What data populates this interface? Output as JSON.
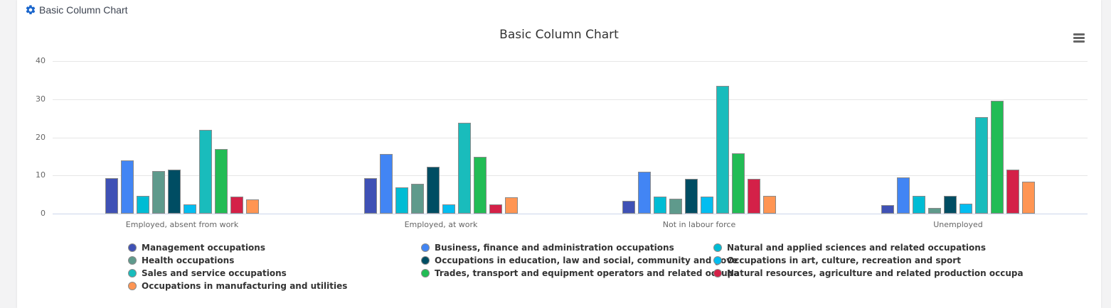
{
  "panel": {
    "header_title": "Basic Column Chart",
    "header_icon": "gear-icon",
    "accent_color": "#1a66cc"
  },
  "menu_icon": "hamburger-menu-icon",
  "chart_data": {
    "type": "bar",
    "title": "Basic Column Chart",
    "xlabel": "",
    "ylabel": "",
    "ylim": [
      0,
      40
    ],
    "yticks": [
      "0",
      "10",
      "20",
      "30",
      "40"
    ],
    "grid": true,
    "legend_position": "bottom",
    "categories": [
      "Employed, absent from work",
      "Employed, at work",
      "Not in labour force",
      "Unemployed"
    ],
    "series": [
      {
        "name": "Management occupations",
        "color": "#3f51b5",
        "values": [
          9.3,
          9.3,
          3.3,
          2.2
        ]
      },
      {
        "name": "Business, finance and administration occupations",
        "color": "#4285f4",
        "values": [
          13.9,
          15.6,
          10.9,
          9.5
        ]
      },
      {
        "name": "Natural and applied sciences and related occupations",
        "color": "#00bcd4",
        "values": [
          4.6,
          6.8,
          4.4,
          4.6
        ]
      },
      {
        "name": "Health occupations",
        "color": "#5f9a8c",
        "values": [
          11.2,
          7.8,
          4.0,
          1.5
        ]
      },
      {
        "name": "Occupations in education, law and social, community and gove",
        "color": "#004d63",
        "values": [
          11.5,
          12.2,
          9.1,
          4.6
        ]
      },
      {
        "name": "Occupations in art, culture, recreation and sport",
        "color": "#03bdf0",
        "values": [
          2.4,
          2.4,
          4.4,
          2.6
        ]
      },
      {
        "name": "Sales and service occupations",
        "color": "#19bcbc",
        "values": [
          21.9,
          23.9,
          33.4,
          25.3
        ]
      },
      {
        "name": "Trades, transport and equipment operators and related occupa",
        "color": "#22bc55",
        "values": [
          16.9,
          14.8,
          15.9,
          29.6
        ]
      },
      {
        "name": "Natural resources, agriculture and related production occupa",
        "color": "#d42148",
        "values": [
          4.4,
          2.4,
          9.2,
          11.5
        ]
      },
      {
        "name": "Occupations in manufacturing and utilities",
        "color": "#ff9553",
        "values": [
          3.7,
          4.3,
          4.6,
          8.3
        ]
      }
    ]
  },
  "legend": {
    "columns": [
      [
        "Management occupations",
        "Health occupations",
        "Sales and service occupations",
        "Occupations in manufacturing and utilities"
      ],
      [
        "Business, finance and administration occupations",
        "Occupations in education, law and social, community and gove",
        "Trades, transport and equipment operators and related occupa"
      ],
      [
        "Natural and applied sciences and related occupations",
        "Occupations in art, culture, recreation and sport",
        "Natural resources, agriculture and related production occupa"
      ]
    ]
  }
}
